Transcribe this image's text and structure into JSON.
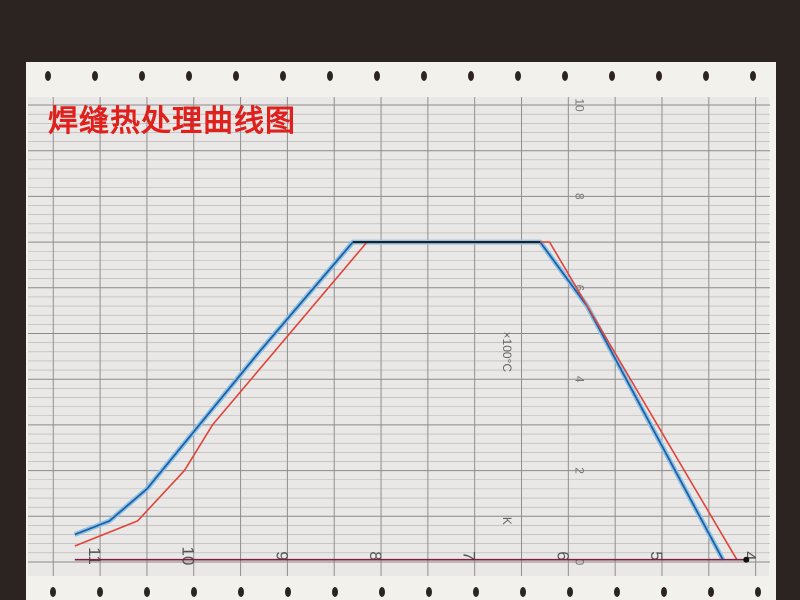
{
  "title": "焊缝热处理曲线图",
  "chart_data": {
    "type": "line",
    "title": "焊缝热处理曲线图",
    "unit_label": "×100°C",
    "sensor_label": "K",
    "y_ticks": [
      "0",
      "2",
      "4",
      "6",
      "8",
      "10"
    ],
    "ylim": [
      0,
      10
    ],
    "x_ticks": [
      "11",
      "10",
      "9",
      "8",
      "7",
      "6",
      "5",
      "4"
    ],
    "xlim": [
      11.3,
      3.9
    ],
    "grid": true,
    "series": [
      {
        "color": "#1f5fa8",
        "points": [
          [
            11.27,
            0.6
          ],
          [
            10.9,
            0.9
          ],
          [
            10.5,
            1.6
          ],
          [
            10.1,
            2.6
          ],
          [
            9.9,
            3.1
          ],
          [
            9.3,
            4.6
          ],
          [
            8.3,
            7.0
          ],
          [
            6.3,
            7.0
          ],
          [
            5.8,
            5.6
          ],
          [
            4.35,
            0.05
          ]
        ]
      },
      {
        "color": "#e0443a",
        "points": [
          [
            11.27,
            0.35
          ],
          [
            10.6,
            0.9
          ],
          [
            10.1,
            2.0
          ],
          [
            9.8,
            3.0
          ],
          [
            8.15,
            7.0
          ],
          [
            6.2,
            7.0
          ],
          [
            4.2,
            0.05
          ]
        ]
      },
      {
        "color": "#7a1f45",
        "points": [
          [
            11.27,
            0.05
          ],
          [
            4.1,
            0.05
          ]
        ]
      }
    ]
  }
}
